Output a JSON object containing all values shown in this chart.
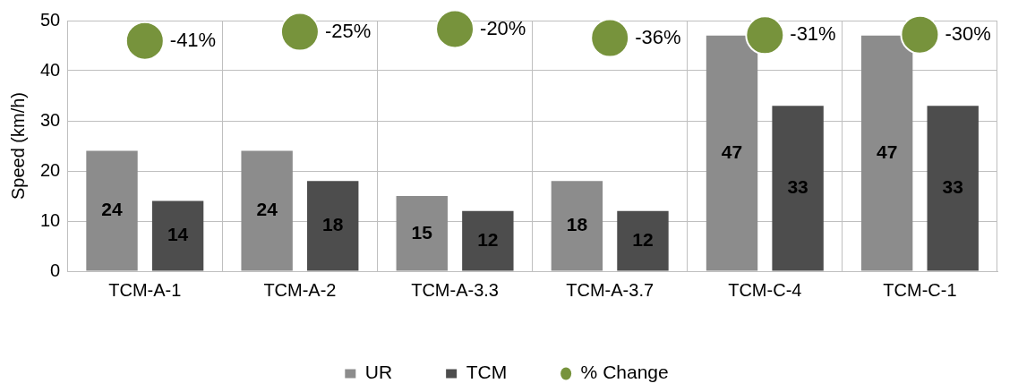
{
  "chart_data": {
    "type": "bar",
    "ylabel": "Speed (km/h)",
    "categories": [
      "TCM-A-1",
      "TCM-A-2",
      "TCM-A-3.3",
      "TCM-A-3.7",
      "TCM-C-4",
      "TCM-C-1"
    ],
    "series": [
      {
        "name": "UR",
        "color": "#8c8c8c",
        "values": [
          24,
          24,
          15,
          18,
          47,
          47
        ]
      },
      {
        "name": "TCM",
        "color": "#4d4d4d",
        "values": [
          14,
          18,
          12,
          12,
          33,
          33
        ]
      },
      {
        "name": "% Change",
        "type": "scatter",
        "axis": "y2",
        "color": "#77933c",
        "marker": "circle",
        "values": [
          -41,
          -25,
          -20,
          -36,
          -31,
          -30
        ],
        "value_labels": [
          "-41%",
          "-25%",
          "-20%",
          "-36%",
          "-31%",
          "-30%"
        ]
      }
    ],
    "ylim": [
      0,
      50
    ],
    "y2lim": [
      -450,
      -5
    ],
    "yticks": [
      0,
      10,
      20,
      30,
      40,
      50
    ],
    "grid": true,
    "legend": "bottom",
    "data_labels": true
  }
}
